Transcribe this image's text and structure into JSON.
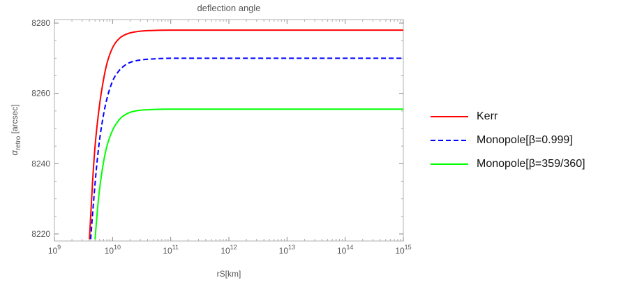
{
  "chart_data": {
    "type": "line",
    "title": "deflection angle",
    "xlabel": "rS[km]",
    "ylabel_main": "α",
    "ylabel_sub": "retro",
    "ylabel_unit": " [arcsec]",
    "x_scale": "log10",
    "xlim": [
      1000000000.0,
      1000000000000000.0
    ],
    "ylim": [
      8218,
      8281
    ],
    "x_ticks": [
      9,
      10,
      11,
      12,
      13,
      14,
      15
    ],
    "x_tick_base": "10",
    "y_ticks": [
      8220,
      8240,
      8260,
      8280
    ],
    "grid": false,
    "legend_position": "right",
    "series": [
      {
        "name": "Kerr",
        "color": "#ff0000",
        "dash": "solid",
        "x": [
          4000000000.0,
          4500000000.0,
          5000000000.0,
          6000000000.0,
          7000000000.0,
          8000000000.0,
          10000000000.0,
          13000000000.0,
          16000000000.0,
          20000000000.0,
          30000000000.0,
          50000000000.0,
          100000000000.0,
          1000000000000.0,
          1000000000000000.0
        ],
        "y": [
          8218.5,
          8234,
          8245,
          8257,
          8264,
          8268.5,
          8273,
          8275.6,
          8276.6,
          8277.2,
          8277.7,
          8277.9,
          8278,
          8278,
          8278
        ]
      },
      {
        "name": "Monopole[β=0.999]",
        "color": "#0000ff",
        "dash": "dashed",
        "x": [
          4200000000.0,
          4700000000.0,
          5300000000.0,
          6000000000.0,
          7000000000.0,
          8000000000.0,
          10000000000.0,
          13000000000.0,
          16000000000.0,
          20000000000.0,
          30000000000.0,
          50000000000.0,
          100000000000.0,
          1000000000000.0,
          1000000000000000.0
        ],
        "y": [
          8218.5,
          8229,
          8239,
          8247,
          8254,
          8258.5,
          8263.5,
          8266.5,
          8267.9,
          8268.8,
          8269.5,
          8269.8,
          8270,
          8270,
          8270
        ]
      },
      {
        "name": "Monopole[β=359/360]",
        "color": "#00ff00",
        "dash": "solid",
        "x": [
          5000000000.0,
          5500000000.0,
          6000000000.0,
          7000000000.0,
          8000000000.0,
          10000000000.0,
          13000000000.0,
          16000000000.0,
          20000000000.0,
          25000000000.0,
          30000000000.0,
          50000000000.0,
          100000000000.0,
          1000000000000.0,
          1000000000000000.0
        ],
        "y": [
          8218.5,
          8227,
          8233,
          8240.5,
          8245,
          8249.5,
          8252.5,
          8253.8,
          8254.6,
          8255,
          8255.2,
          8255.4,
          8255.5,
          8255.5,
          8255.5
        ]
      }
    ]
  }
}
